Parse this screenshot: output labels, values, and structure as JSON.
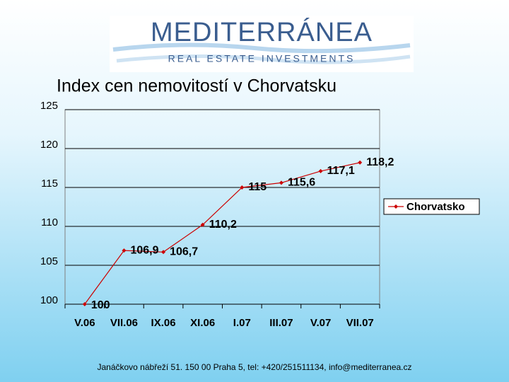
{
  "logo": {
    "name": "MEDITERRÁNEA",
    "tagline": "REAL ESTATE INVESTMENTS"
  },
  "chart_data": {
    "type": "line",
    "title": "Index cen nemovitostí v Chorvatsku",
    "categories": [
      "V.06",
      "VII.06",
      "IX.06",
      "XI.06",
      "I.07",
      "III.07",
      "V.07",
      "VII.07"
    ],
    "series": [
      {
        "name": "Chorvatsko",
        "color": "#cc0000",
        "values": [
          100,
          106.9,
          106.7,
          110.2,
          115,
          115.6,
          117.1,
          118.2
        ],
        "value_labels": [
          "100",
          "106,9",
          "106,7",
          "110,2",
          "115",
          "115,6",
          "117,1",
          "118,2"
        ]
      }
    ],
    "ylim": [
      100,
      125
    ],
    "yticks": [
      100,
      105,
      110,
      115,
      120,
      125
    ],
    "grid": true,
    "legend": "right"
  },
  "footer": "Janáčkovo nábřeží 51. 150 00 Praha 5, tel: +420/251511134, info@mediterranea.cz"
}
